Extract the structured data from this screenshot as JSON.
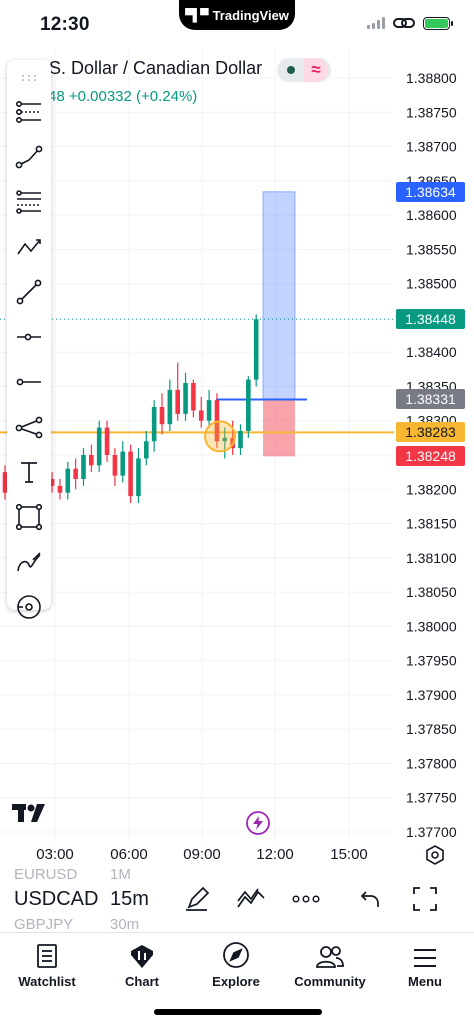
{
  "status_bar": {
    "time": "12:30",
    "island_label": "TradingView",
    "icons": [
      "cellular-signal-icon",
      "link-icon",
      "battery-charging-icon"
    ],
    "battery_color": "#34c759"
  },
  "header": {
    "title": ".S. Dollar / Canadian Dollar",
    "change_prefix": "48",
    "change": "+0.00332 (+0.24%)",
    "status_icons": [
      "market-open-dot-icon",
      "delayed-data-wave-icon"
    ],
    "wave_glyph": "≈"
  },
  "tools": [
    {
      "name": "cursor-settings-icon"
    },
    {
      "name": "trend-line-icon"
    },
    {
      "name": "fib-retracement-icon"
    },
    {
      "name": "pattern-xabcd-icon"
    },
    {
      "name": "brush-line-icon"
    },
    {
      "name": "horizontal-ray-icon"
    },
    {
      "name": "horizontal-line-icon"
    },
    {
      "name": "path-icon"
    },
    {
      "name": "text-tool-icon",
      "glyph": "T"
    },
    {
      "name": "rectangle-icon"
    },
    {
      "name": "curve-icon"
    },
    {
      "name": "magnet-icon"
    }
  ],
  "price_axis": {
    "ticks": [
      "1.38800",
      "1.38750",
      "1.38700",
      "1.38650",
      "1.38600",
      "1.38550",
      "1.38500",
      "1.38450",
      "1.38400",
      "1.38350",
      "1.38300",
      "1.38250",
      "1.38200",
      "1.38150",
      "1.38100",
      "1.38050",
      "1.38000",
      "1.37950",
      "1.37900",
      "1.37850",
      "1.37800",
      "1.37750",
      "1.37700"
    ],
    "tags": [
      {
        "label": "1.38634",
        "color": "#2962ff",
        "price": 1.38634
      },
      {
        "label": "1.38448",
        "color": "#089981",
        "price": 1.38448
      },
      {
        "label": "1.38331",
        "color": "#787b86",
        "price": 1.38331
      },
      {
        "label": "1.38283",
        "color": "#f7b731",
        "price": 1.38283,
        "text_color": "#131722"
      },
      {
        "label": "1.38248",
        "color": "#f23645",
        "price": 1.38248
      }
    ]
  },
  "time_axis": {
    "labels": [
      "03:00",
      "06:00",
      "09:00",
      "12:00",
      "15:00"
    ],
    "settings_icon": "gear-settings-icon"
  },
  "chart_data": {
    "type": "candlestick",
    "symbol": "USDCAD",
    "interval": "15m",
    "ylim": [
      1.377,
      1.388
    ],
    "up_color": "#089981",
    "down_color": "#f23645",
    "x_ticks": [
      "03:00",
      "06:00",
      "09:00",
      "12:00",
      "15:00"
    ],
    "candles": [
      {
        "o": 1.38225,
        "h": 1.38235,
        "l": 1.38185,
        "c": 1.38195
      },
      {
        "o": 1.3829,
        "h": 1.383,
        "l": 1.38205,
        "c": 1.38215
      },
      {
        "o": 1.38215,
        "h": 1.38225,
        "l": 1.3817,
        "c": 1.38185
      },
      {
        "o": 1.38185,
        "h": 1.38215,
        "l": 1.38175,
        "c": 1.38205
      },
      {
        "o": 1.38205,
        "h": 1.3822,
        "l": 1.38185,
        "c": 1.38195
      },
      {
        "o": 1.38195,
        "h": 1.3823,
        "l": 1.3819,
        "c": 1.38215
      },
      {
        "o": 1.38215,
        "h": 1.38225,
        "l": 1.38195,
        "c": 1.38205
      },
      {
        "o": 1.38205,
        "h": 1.38215,
        "l": 1.38185,
        "c": 1.38195
      },
      {
        "o": 1.38195,
        "h": 1.3824,
        "l": 1.38185,
        "c": 1.3823
      },
      {
        "o": 1.3823,
        "h": 1.38245,
        "l": 1.382,
        "c": 1.38215
      },
      {
        "o": 1.38215,
        "h": 1.3826,
        "l": 1.38205,
        "c": 1.3825
      },
      {
        "o": 1.3825,
        "h": 1.38265,
        "l": 1.38225,
        "c": 1.38235
      },
      {
        "o": 1.38235,
        "h": 1.383,
        "l": 1.38225,
        "c": 1.3829
      },
      {
        "o": 1.3829,
        "h": 1.383,
        "l": 1.3824,
        "c": 1.3825
      },
      {
        "o": 1.3825,
        "h": 1.3826,
        "l": 1.38205,
        "c": 1.3822
      },
      {
        "o": 1.3822,
        "h": 1.3827,
        "l": 1.3821,
        "c": 1.38255
      },
      {
        "o": 1.38255,
        "h": 1.38265,
        "l": 1.3818,
        "c": 1.3819
      },
      {
        "o": 1.3819,
        "h": 1.3826,
        "l": 1.3818,
        "c": 1.38245
      },
      {
        "o": 1.38245,
        "h": 1.38285,
        "l": 1.38235,
        "c": 1.3827
      },
      {
        "o": 1.3827,
        "h": 1.3833,
        "l": 1.38255,
        "c": 1.3832
      },
      {
        "o": 1.3832,
        "h": 1.3834,
        "l": 1.3828,
        "c": 1.38295
      },
      {
        "o": 1.38295,
        "h": 1.3836,
        "l": 1.38285,
        "c": 1.38345
      },
      {
        "o": 1.38345,
        "h": 1.38385,
        "l": 1.383,
        "c": 1.3831
      },
      {
        "o": 1.3831,
        "h": 1.3837,
        "l": 1.383,
        "c": 1.38355
      },
      {
        "o": 1.38355,
        "h": 1.3836,
        "l": 1.38305,
        "c": 1.38315
      },
      {
        "o": 1.38315,
        "h": 1.38335,
        "l": 1.3829,
        "c": 1.383
      },
      {
        "o": 1.383,
        "h": 1.38345,
        "l": 1.3829,
        "c": 1.3833
      },
      {
        "o": 1.3833,
        "h": 1.3834,
        "l": 1.3826,
        "c": 1.3827
      },
      {
        "o": 1.3827,
        "h": 1.3829,
        "l": 1.38245,
        "c": 1.38275
      },
      {
        "o": 1.38275,
        "h": 1.383,
        "l": 1.3825,
        "c": 1.3826
      },
      {
        "o": 1.3826,
        "h": 1.38295,
        "l": 1.3825,
        "c": 1.38285
      },
      {
        "o": 1.38285,
        "h": 1.38365,
        "l": 1.38275,
        "c": 1.3836
      },
      {
        "o": 1.3836,
        "h": 1.38455,
        "l": 1.3835,
        "c": 1.38448
      }
    ],
    "lines": [
      {
        "name": "orange-horizontal-line",
        "price": 1.38283,
        "color": "#f7b731"
      },
      {
        "name": "blue-entry-line",
        "price": 1.38331,
        "color": "#2962ff"
      }
    ],
    "position": {
      "entry": 1.38331,
      "target": 1.38634,
      "stop": 1.38248
    }
  },
  "bottom_toolbar": {
    "symbols": [
      {
        "symbol": "EURUSD",
        "interval": "1M"
      },
      {
        "symbol": "USDCAD",
        "interval": "15m"
      },
      {
        "symbol": "GBPJPY",
        "interval": "30m"
      }
    ],
    "icons": [
      "drawing-pen-icon",
      "indicators-icon",
      "more-icon",
      "undo-icon",
      "fullscreen-icon"
    ]
  },
  "tab_bar": {
    "tabs": [
      {
        "label": "Watchlist",
        "icon": "watchlist-icon"
      },
      {
        "label": "Chart",
        "icon": "chart-icon"
      },
      {
        "label": "Explore",
        "icon": "compass-icon"
      },
      {
        "label": "Community",
        "icon": "community-icon"
      },
      {
        "label": "Menu",
        "icon": "hamburger-menu-icon"
      }
    ]
  }
}
